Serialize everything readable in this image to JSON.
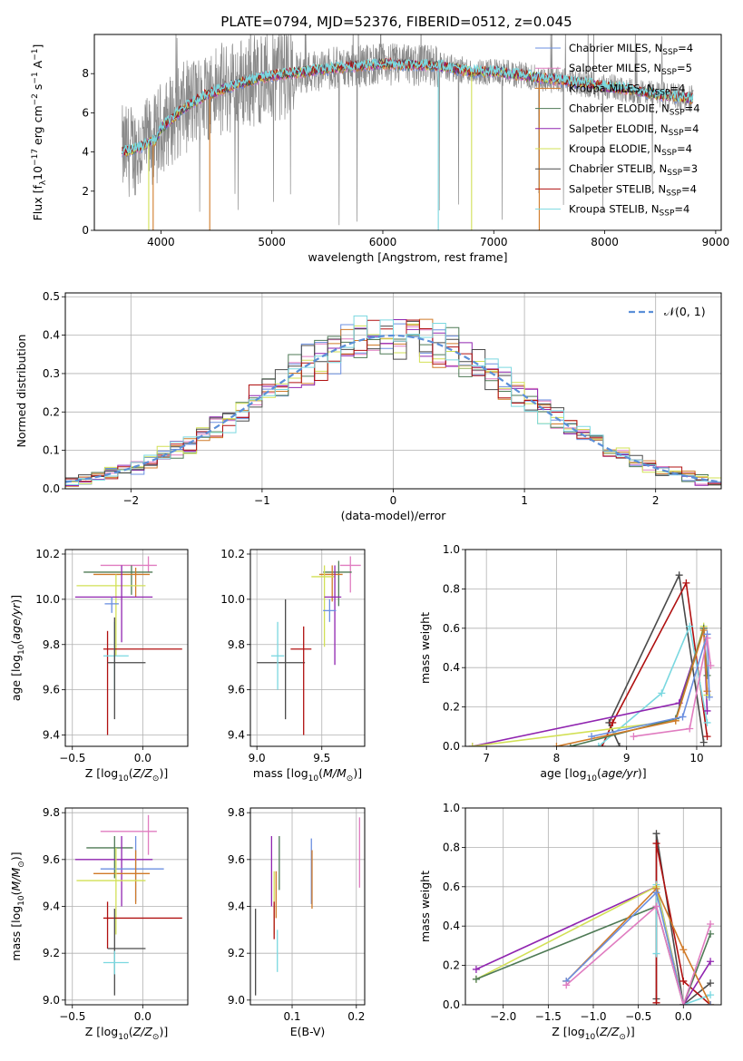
{
  "title": "PLATE=0794, MJD=52376, FIBERID=0512, z=0.045",
  "colors": {
    "Chabrier MILES": "#6b8fe0",
    "Salpeter MILES": "#e07cc0",
    "Kroupa MILES": "#d07a28",
    "Chabrier ELODIE": "#4e7a55",
    "Salpeter ELODIE": "#9025b0",
    "Kroupa ELODIE": "#d2e055",
    "Chabrier STELIB": "#4a4a4a",
    "Salpeter STELIB": "#b01010",
    "Kroupa STELIB": "#7ad8e0"
  },
  "chart_data": [
    {
      "id": "spectrum",
      "type": "line",
      "xlabel": "wavelength [Angstrom, rest frame]",
      "ylabel": "Flux [f",
      "xlim": [
        3400,
        9050
      ],
      "ylim": [
        0,
        10
      ],
      "xticks": [
        4000,
        5000,
        6000,
        7000,
        8000,
        9000
      ],
      "yticks": [
        0,
        2,
        4,
        6,
        8
      ],
      "grid": false,
      "legend_position": "upper-right",
      "data_range": [
        3650,
        8800
      ],
      "continuum": [
        [
          3650,
          4.0
        ],
        [
          3800,
          4.2
        ],
        [
          3950,
          4.6
        ],
        [
          4000,
          5.2
        ],
        [
          4200,
          6.2
        ],
        [
          4400,
          6.9
        ],
        [
          4700,
          7.5
        ],
        [
          5000,
          7.9
        ],
        [
          5300,
          8.1
        ],
        [
          5600,
          8.3
        ],
        [
          5800,
          8.4
        ],
        [
          6000,
          8.5
        ],
        [
          6200,
          8.45
        ],
        [
          6500,
          8.4
        ],
        [
          6800,
          8.1
        ],
        [
          7000,
          8.1
        ],
        [
          7400,
          7.8
        ],
        [
          7800,
          7.5
        ],
        [
          8200,
          7.2
        ],
        [
          8500,
          6.9
        ],
        [
          8800,
          6.7
        ]
      ],
      "dropouts": [
        [
          3890,
          "Kroupa ELODIE"
        ],
        [
          3930,
          "Kroupa MILES"
        ],
        [
          4440,
          "Kroupa MILES"
        ],
        [
          6500,
          "Kroupa STELIB"
        ],
        [
          6800,
          "Kroupa ELODIE"
        ],
        [
          7410,
          "Kroupa MILES"
        ]
      ],
      "legend": [
        {
          "name": "Chabrier MILES",
          "nssp": "4"
        },
        {
          "name": "Salpeter MILES",
          "nssp": "5"
        },
        {
          "name": "Kroupa MILES",
          "nssp": "4"
        },
        {
          "name": "Chabrier ELODIE",
          "nssp": "4"
        },
        {
          "name": "Salpeter ELODIE",
          "nssp": "4"
        },
        {
          "name": "Kroupa ELODIE",
          "nssp": "4"
        },
        {
          "name": "Chabrier STELIB",
          "nssp": "3"
        },
        {
          "name": "Salpeter STELIB",
          "nssp": "4"
        },
        {
          "name": "Kroupa STELIB",
          "nssp": "4"
        }
      ]
    },
    {
      "id": "residuals",
      "type": "histogram",
      "xlabel": "(data-model)/error",
      "ylabel": "Normed distribution",
      "xlim": [
        -2.5,
        2.5
      ],
      "ylim": [
        0,
        0.51
      ],
      "xticks": [
        -2,
        -1,
        0,
        1,
        2
      ],
      "yticks": [
        0.0,
        0.1,
        0.2,
        0.3,
        0.4,
        0.5
      ],
      "grid": true,
      "bin_width": 0.1,
      "legend": [
        {
          "name": "𝒩(0, 1)",
          "style": "dashed",
          "color": "#5b8fd8"
        }
      ],
      "legend_position": "upper-right"
    },
    {
      "id": "age-vs-Z",
      "type": "errorbar",
      "xlabel": "Z [log",
      "ylabel": "age  [log",
      "xlim": [
        -0.55,
        0.32
      ],
      "ylim": [
        9.35,
        10.22
      ],
      "xticks": [
        -0.5,
        0.0
      ],
      "yticks": [
        9.4,
        9.6,
        9.8,
        10.0,
        10.2
      ],
      "grid": true,
      "points": [
        {
          "name": "Salpeter MILES",
          "x": 0.04,
          "xerr": [
            0.34,
            0.06
          ],
          "y": 10.15,
          "yerr": [
            0.03,
            0.04
          ]
        },
        {
          "name": "Chabrier ELODIE",
          "x": -0.08,
          "xerr": [
            0.34,
            0.15
          ],
          "y": 10.12,
          "yerr": [
            0.1,
            0.03
          ]
        },
        {
          "name": "Kroupa MILES",
          "x": -0.05,
          "xerr": [
            0.3,
            0.1
          ],
          "y": 10.11,
          "yerr": [
            0.1,
            0.03
          ]
        },
        {
          "name": "Kroupa ELODIE",
          "x": -0.19,
          "xerr": [
            0.28,
            0.21
          ],
          "y": 10.06,
          "yerr": [
            0.31,
            0.05
          ]
        },
        {
          "name": "Salpeter ELODIE",
          "x": -0.15,
          "xerr": [
            0.33,
            0.22
          ],
          "y": 10.01,
          "yerr": [
            0.2,
            0.14
          ]
        },
        {
          "name": "Chabrier MILES",
          "x": -0.22,
          "xerr": [
            0.05,
            0.05
          ],
          "y": 9.98,
          "yerr": [
            0.04,
            0.03
          ]
        },
        {
          "name": "Salpeter STELIB",
          "x": -0.25,
          "xerr": [
            0.03,
            0.53
          ],
          "y": 9.78,
          "yerr": [
            0.38,
            0.08
          ]
        },
        {
          "name": "Kroupa STELIB",
          "x": -0.2,
          "xerr": [
            0.08,
            0.1
          ],
          "y": 9.75,
          "yerr": [
            0.15,
            0.15
          ]
        },
        {
          "name": "Chabrier STELIB",
          "x": -0.2,
          "xerr": [
            0.05,
            0.22
          ],
          "y": 9.72,
          "yerr": [
            0.25,
            0.2
          ]
        }
      ]
    },
    {
      "id": "age-vs-mass",
      "type": "errorbar",
      "xlabel": "mass [log",
      "ylabel": "",
      "xlim": [
        8.95,
        9.83
      ],
      "ylim": [
        9.35,
        10.22
      ],
      "xticks": [
        9.0,
        9.5
      ],
      "yticks": [
        9.4,
        9.6,
        9.8,
        10.0,
        10.2
      ],
      "grid": true,
      "points": [
        {
          "name": "Salpeter MILES",
          "x": 9.72,
          "xerr": [
            0.08,
            0.08
          ],
          "y": 10.15,
          "yerr": [
            0.12,
            0.04
          ]
        },
        {
          "name": "Chabrier ELODIE",
          "x": 9.63,
          "xerr": [
            0.12,
            0.1
          ],
          "y": 10.12,
          "yerr": [
            0.15,
            0.05
          ]
        },
        {
          "name": "Kroupa MILES",
          "x": 9.58,
          "xerr": [
            0.1,
            0.08
          ],
          "y": 10.11,
          "yerr": [
            0.12,
            0.04
          ]
        },
        {
          "name": "Kroupa ELODIE",
          "x": 9.52,
          "xerr": [
            0.1,
            0.08
          ],
          "y": 10.1,
          "yerr": [
            0.31,
            0.05
          ]
        },
        {
          "name": "Salpeter ELODIE",
          "x": 9.6,
          "xerr": [
            0.08,
            0.05
          ],
          "y": 10.01,
          "yerr": [
            0.3,
            0.14
          ]
        },
        {
          "name": "Chabrier STELIB",
          "x": 9.22,
          "xerr": [
            0.22,
            0.15
          ],
          "y": 9.72,
          "yerr": [
            0.25,
            0.28
          ]
        },
        {
          "name": "Salpeter STELIB",
          "x": 9.36,
          "xerr": [
            0.1,
            0.06
          ],
          "y": 9.78,
          "yerr": [
            0.38,
            0.1
          ]
        },
        {
          "name": "Kroupa STELIB",
          "x": 9.16,
          "xerr": [
            0.05,
            0.05
          ],
          "y": 9.75,
          "yerr": [
            0.15,
            0.15
          ]
        },
        {
          "name": "Chabrier MILES",
          "x": 9.56,
          "xerr": [
            0.05,
            0.05
          ],
          "y": 9.95,
          "yerr": [
            0.05,
            0.05
          ]
        }
      ]
    },
    {
      "id": "weight-vs-age",
      "type": "line",
      "xlabel": "age  [log",
      "ylabel": "mass weight",
      "xlim": [
        6.7,
        10.35
      ],
      "ylim": [
        0,
        1.0
      ],
      "xticks": [
        7,
        8,
        9,
        10
      ],
      "yticks": [
        0.0,
        0.2,
        0.4,
        0.6,
        0.8,
        1.0
      ],
      "grid": true,
      "series": [
        {
          "name": "Chabrier STELIB",
          "x": [
            8.9,
            8.75,
            9.75,
            10.1
          ],
          "y": [
            0.0,
            0.12,
            0.87,
            0.02
          ]
        },
        {
          "name": "Salpeter STELIB",
          "x": [
            8.65,
            8.8,
            9.85,
            10.15
          ],
          "y": [
            0.0,
            0.12,
            0.83,
            0.05
          ]
        },
        {
          "name": "Kroupa STELIB",
          "x": [
            8.6,
            9.5,
            9.9,
            10.15
          ],
          "y": [
            0.0,
            0.27,
            0.61,
            0.12
          ]
        },
        {
          "name": "Salpeter ELODIE",
          "x": [
            6.8,
            9.75,
            10.1,
            10.15
          ],
          "y": [
            0.0,
            0.22,
            0.6,
            0.18
          ]
        },
        {
          "name": "Kroupa ELODIE",
          "x": [
            6.8,
            9.7,
            10.1,
            10.15
          ],
          "y": [
            0.0,
            0.13,
            0.61,
            0.26
          ]
        },
        {
          "name": "Chabrier ELODIE",
          "x": [
            8.2,
            9.7,
            10.1,
            10.15
          ],
          "y": [
            0.0,
            0.14,
            0.6,
            0.36
          ]
        },
        {
          "name": "Kroupa MILES",
          "x": [
            8.0,
            9.7,
            10.1,
            10.15
          ],
          "y": [
            0.0,
            0.13,
            0.59,
            0.28
          ]
        },
        {
          "name": "Chabrier MILES",
          "x": [
            8.5,
            9.8,
            10.15,
            10.18
          ],
          "y": [
            0.05,
            0.15,
            0.57,
            0.25
          ]
        },
        {
          "name": "Salpeter MILES",
          "x": [
            9.1,
            9.9,
            10.15,
            10.2
          ],
          "y": [
            0.05,
            0.09,
            0.55,
            0.41
          ]
        }
      ]
    },
    {
      "id": "mass-vs-Z",
      "type": "errorbar",
      "xlabel": "Z [log",
      "ylabel": "mass [log",
      "xlim": [
        -0.55,
        0.32
      ],
      "ylim": [
        8.98,
        9.82
      ],
      "xticks": [
        -0.5,
        0.0
      ],
      "yticks": [
        9.0,
        9.2,
        9.4,
        9.6,
        9.8
      ],
      "grid": true,
      "points": [
        {
          "name": "Salpeter MILES",
          "x": 0.04,
          "xerr": [
            0.34,
            0.06
          ],
          "y": 9.72,
          "yerr": [
            0.1,
            0.07
          ]
        },
        {
          "name": "Chabrier ELODIE",
          "x": -0.2,
          "xerr": [
            0.2,
            0.13
          ],
          "y": 9.65,
          "yerr": [
            0.13,
            0.05
          ]
        },
        {
          "name": "Salpeter ELODIE",
          "x": -0.15,
          "xerr": [
            0.33,
            0.22
          ],
          "y": 9.6,
          "yerr": [
            0.2,
            0.1
          ]
        },
        {
          "name": "Chabrier MILES",
          "x": -0.05,
          "xerr": [
            0.25,
            0.2
          ],
          "y": 9.56,
          "yerr": [
            0.14,
            0.14
          ]
        },
        {
          "name": "Kroupa MILES",
          "x": -0.05,
          "xerr": [
            0.3,
            0.1
          ],
          "y": 9.54,
          "yerr": [
            0.13,
            0.1
          ]
        },
        {
          "name": "Kroupa ELODIE",
          "x": -0.19,
          "xerr": [
            0.28,
            0.21
          ],
          "y": 9.51,
          "yerr": [
            0.23,
            0.14
          ]
        },
        {
          "name": "Salpeter STELIB",
          "x": -0.25,
          "xerr": [
            0.03,
            0.53
          ],
          "y": 9.35,
          "yerr": [
            0.13,
            0.07
          ]
        },
        {
          "name": "Chabrier STELIB",
          "x": -0.2,
          "xerr": [
            0.05,
            0.22
          ],
          "y": 9.22,
          "yerr": [
            0.2,
            0.17
          ]
        },
        {
          "name": "Kroupa STELIB",
          "x": -0.2,
          "xerr": [
            0.08,
            0.1
          ],
          "y": 9.16,
          "yerr": [
            0.05,
            0.05
          ]
        }
      ]
    },
    {
      "id": "mass-vs-ebv",
      "type": "errorbar",
      "xlabel": "E(B-V)",
      "ylabel": "",
      "xlim": [
        0.035,
        0.213
      ],
      "ylim": [
        8.98,
        9.82
      ],
      "xticks": [
        0.1,
        0.2
      ],
      "yticks": [
        9.0,
        9.2,
        9.4,
        9.6,
        9.8
      ],
      "grid": true,
      "points": [
        {
          "name": "Chabrier STELIB",
          "x": 0.043,
          "y": 9.22,
          "yerr": [
            0.2,
            0.17
          ]
        },
        {
          "name": "Salpeter ELODIE",
          "x": 0.068,
          "y": 9.6,
          "yerr": [
            0.2,
            0.1
          ]
        },
        {
          "name": "Kroupa ELODIE",
          "x": 0.072,
          "y": 9.41,
          "yerr": [
            0.13,
            0.14
          ]
        },
        {
          "name": "Salpeter STELIB",
          "x": 0.072,
          "y": 9.36,
          "yerr": [
            0.1,
            0.06
          ]
        },
        {
          "name": "Kroupa MILES",
          "x": 0.075,
          "y": 9.45,
          "yerr": [
            0.1,
            0.1
          ]
        },
        {
          "name": "Kroupa STELIB",
          "x": 0.077,
          "y": 9.2,
          "yerr": [
            0.08,
            0.1
          ]
        },
        {
          "name": "Chabrier ELODIE",
          "x": 0.08,
          "y": 9.6,
          "yerr": [
            0.13,
            0.1
          ]
        },
        {
          "name": "Chabrier MILES",
          "x": 0.13,
          "y": 9.55,
          "yerr": [
            0.14,
            0.14
          ]
        },
        {
          "name": "Kroupa MILES",
          "x": 0.131,
          "y": 9.52,
          "yerr": [
            0.13,
            0.12
          ]
        },
        {
          "name": "Salpeter MILES",
          "x": 0.205,
          "y": 9.62,
          "yerr": [
            0.14,
            0.16
          ]
        }
      ]
    },
    {
      "id": "weight-vs-Z",
      "type": "line",
      "xlabel": "Z [log",
      "ylabel": "mass weight",
      "xlim": [
        -2.42,
        0.42
      ],
      "ylim": [
        0,
        1.0
      ],
      "xticks": [
        -2.0,
        -1.5,
        -1.0,
        -0.5,
        0.0
      ],
      "yticks": [
        0.0,
        0.2,
        0.4,
        0.6,
        0.8,
        1.0
      ],
      "grid": true,
      "series": [
        {
          "name": "Chabrier STELIB",
          "x": [
            -0.3,
            -0.3,
            0.0,
            0.3
          ],
          "y": [
            0.03,
            0.87,
            0.0,
            0.11
          ]
        },
        {
          "name": "Salpeter STELIB",
          "x": [
            -0.3,
            -0.3,
            0.0,
            0.3
          ],
          "y": [
            0.01,
            0.82,
            0.12,
            0.0
          ]
        },
        {
          "name": "Kroupa STELIB",
          "x": [
            -0.3,
            -0.3,
            0.0,
            0.3
          ],
          "y": [
            0.26,
            0.61,
            0.0,
            0.05
          ]
        },
        {
          "name": "Salpeter ELODIE",
          "x": [
            -2.3,
            -0.3,
            0.0,
            0.3
          ],
          "y": [
            0.18,
            0.6,
            0.0,
            0.22
          ]
        },
        {
          "name": "Kroupa ELODIE",
          "x": [
            -2.3,
            -0.3,
            0.0,
            0.3
          ],
          "y": [
            0.13,
            0.6,
            0.0,
            0.0
          ]
        },
        {
          "name": "Chabrier ELODIE",
          "x": [
            -2.3,
            -0.3,
            0.0,
            0.3
          ],
          "y": [
            0.13,
            0.5,
            0.0,
            0.36
          ]
        },
        {
          "name": "Kroupa MILES",
          "x": [
            -1.3,
            -0.3,
            0.0,
            0.3
          ],
          "y": [
            0.12,
            0.59,
            0.28,
            0.0
          ]
        },
        {
          "name": "Chabrier MILES",
          "x": [
            -1.3,
            -0.3,
            0.0,
            0.3
          ],
          "y": [
            0.12,
            0.57,
            0.0,
            0.0
          ]
        },
        {
          "name": "Salpeter MILES",
          "x": [
            -1.3,
            -0.3,
            0.0,
            0.3
          ],
          "y": [
            0.1,
            0.5,
            0.0,
            0.41
          ]
        }
      ]
    }
  ]
}
